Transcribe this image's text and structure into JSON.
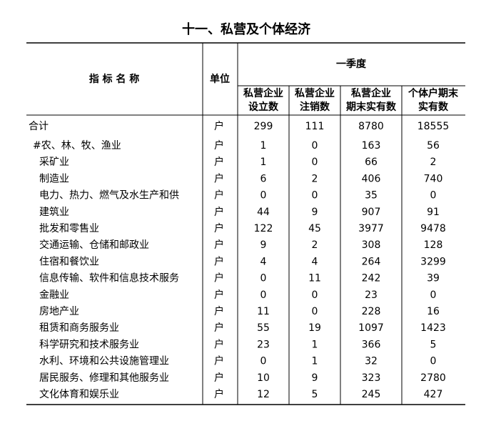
{
  "title": "十一、私营及个体经济",
  "table": {
    "header": {
      "name": "指 标 名 称",
      "unit": "单位",
      "period": "一季度",
      "columns": [
        [
          "私营企业",
          "设立数"
        ],
        [
          "私营企业",
          "注销数"
        ],
        [
          "私营企业",
          "期末实有数"
        ],
        [
          "个体户期末",
          "实有数"
        ]
      ]
    },
    "rows": [
      [
        "合计",
        "户",
        299,
        111,
        8780,
        18555
      ],
      [
        "#农、林、牧、渔业",
        "户",
        1,
        0,
        163,
        56
      ],
      [
        "采矿业",
        "户",
        1,
        0,
        66,
        2
      ],
      [
        "制造业",
        "户",
        6,
        2,
        406,
        740
      ],
      [
        "电力、热力、燃气及水生产和供",
        "户",
        0,
        0,
        35,
        0
      ],
      [
        "建筑业",
        "户",
        44,
        9,
        907,
        91
      ],
      [
        "批发和零售业",
        "户",
        122,
        45,
        3977,
        9478
      ],
      [
        "交通运输、仓储和邮政业",
        "户",
        9,
        2,
        308,
        128
      ],
      [
        "住宿和餐饮业",
        "户",
        4,
        4,
        264,
        3299
      ],
      [
        "信息传输、软件和信息技术服务",
        "户",
        0,
        11,
        242,
        39
      ],
      [
        "金融业",
        "户",
        0,
        0,
        23,
        0
      ],
      [
        "房地产业",
        "户",
        11,
        0,
        228,
        16
      ],
      [
        "租赁和商务服务业",
        "户",
        55,
        19,
        1097,
        1423
      ],
      [
        "科学研究和技术服务业",
        "户",
        23,
        1,
        366,
        5
      ],
      [
        "水利、环境和公共设施管理业",
        "户",
        0,
        1,
        32,
        0
      ],
      [
        "居民服务、修理和其他服务业",
        "户",
        10,
        9,
        323,
        2780
      ],
      [
        "文化体育和娱乐业",
        "户",
        12,
        5,
        245,
        427
      ]
    ]
  }
}
